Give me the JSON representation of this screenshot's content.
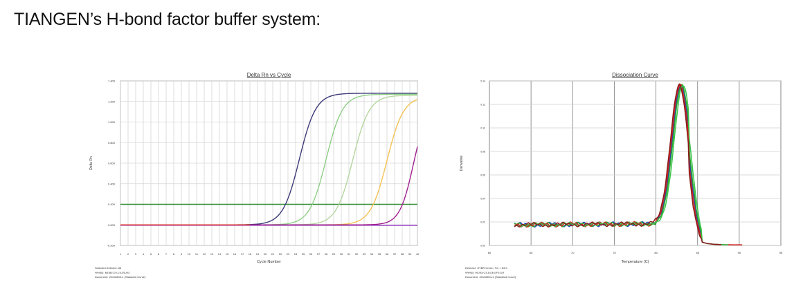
{
  "page": {
    "title": "TIANGEN’s H-bond factor buffer system:"
  },
  "chart_data": [
    {
      "type": "line",
      "title": "Delta Rn vs Cycle",
      "xlabel": "Cycle Number",
      "ylabel": "Delta Rn",
      "xlim": [
        1,
        40
      ],
      "ylim": [
        -0.2,
        1.4
      ],
      "x_ticks": [
        1,
        2,
        3,
        4,
        5,
        6,
        7,
        8,
        9,
        10,
        11,
        12,
        13,
        14,
        15,
        16,
        17,
        18,
        19,
        20,
        21,
        22,
        23,
        24,
        25,
        26,
        27,
        28,
        29,
        30,
        31,
        32,
        33,
        34,
        35,
        36,
        37,
        38,
        39,
        40
      ],
      "y_ticks": [
        "1.400",
        "1.200",
        "1.000",
        "0.800",
        "0.600",
        "0.400",
        "0.200",
        "0.000",
        "-0.200"
      ],
      "y_tick_values": [
        1.4,
        1.2,
        1.0,
        0.8,
        0.6,
        0.4,
        0.2,
        0.0,
        -0.2
      ],
      "grid": true,
      "threshold": 0.2,
      "threshold_color": "#2e8b2e",
      "series": [
        {
          "color": "#3b3a78",
          "midpoint": 24.5,
          "slope": 0.42,
          "plateau": 1.28
        },
        {
          "color": "#8fcf86",
          "midpoint": 28.0,
          "slope": 0.42,
          "plateau": 1.27
        },
        {
          "color": "#b5d6a0",
          "midpoint": 31.5,
          "slope": 0.42,
          "plateau": 1.26
        },
        {
          "color": "#f2c255",
          "midpoint": 36.0,
          "slope": 0.42,
          "plateau": 1.25
        },
        {
          "color": "#a0208e",
          "midpoint": 39.5,
          "slope": 0.5,
          "plateau": 1.2
        },
        {
          "color": "#e0352b",
          "flat": true,
          "x_end": 18,
          "y": 0.0
        }
      ],
      "baseline_color": "#8b2bb8",
      "footer": [
        "Selected Detector: All",
        "Well(s): B3,B3,C6,C3,D5,B3",
        "Document: 20110804-1 (Standard Curve)"
      ]
    },
    {
      "type": "line",
      "title": "Dissociation Curve",
      "xlabel": "Temperature (C)",
      "ylabel": "Derivative",
      "xlim": [
        60,
        95
      ],
      "ylim": [
        0,
        0.14
      ],
      "x_ticks": [
        "60",
        "65",
        "70",
        "75",
        "80",
        "85",
        "90",
        "95"
      ],
      "y_ticks": [
        "0.14",
        "0.12",
        "0.10",
        "0.08",
        "0.06",
        "0.04",
        "0.02",
        "0.00",
        "0"
      ],
      "grid": true,
      "peak_temperature": 83.0,
      "series_colors": [
        "#1f3fb8",
        "#2aa52e",
        "#d42020",
        "#39c54a",
        "#8a1c1c"
      ],
      "footer": [
        "Detector: SYBR Green, Tm = 83.0",
        "Well(s): A5,B3,C3,D3,E3,F3,G3",
        "Document: 20110804-1 (Standard Curve)"
      ]
    }
  ]
}
